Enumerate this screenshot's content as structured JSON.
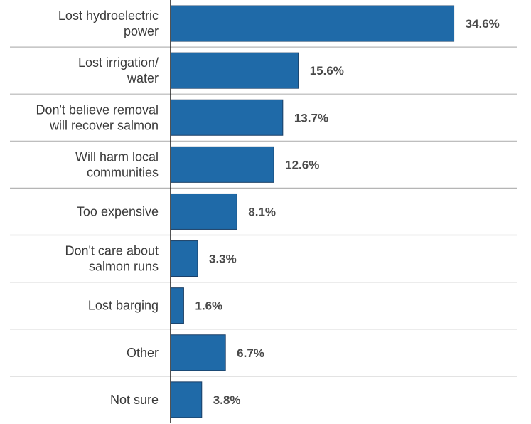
{
  "chart_data": {
    "type": "bar",
    "orientation": "horizontal",
    "categories": [
      [
        "Lost hydroelectric",
        "power"
      ],
      [
        "Lost irrigation/",
        "water"
      ],
      [
        "Don't believe removal",
        "will recover salmon"
      ],
      [
        "Will harm local",
        "communities"
      ],
      [
        "Too expensive"
      ],
      [
        "Don't care about",
        "salmon runs"
      ],
      [
        "Lost barging"
      ],
      [
        "Other"
      ],
      [
        "Not sure"
      ]
    ],
    "values": [
      34.6,
      15.6,
      13.7,
      12.6,
      8.1,
      3.3,
      1.6,
      6.7,
      3.8
    ],
    "value_labels": [
      "34.6%",
      "15.6%",
      "13.7%",
      "12.6%",
      "8.1%",
      "3.3%",
      "1.6%",
      "6.7%",
      "3.8%"
    ],
    "xlim": [
      0,
      36.2
    ],
    "colors": {
      "bar": "#1f6aa8",
      "bar_stroke": "#1a3f66",
      "separator": "#b5b5b5",
      "axis": "#1a1a1a"
    }
  }
}
